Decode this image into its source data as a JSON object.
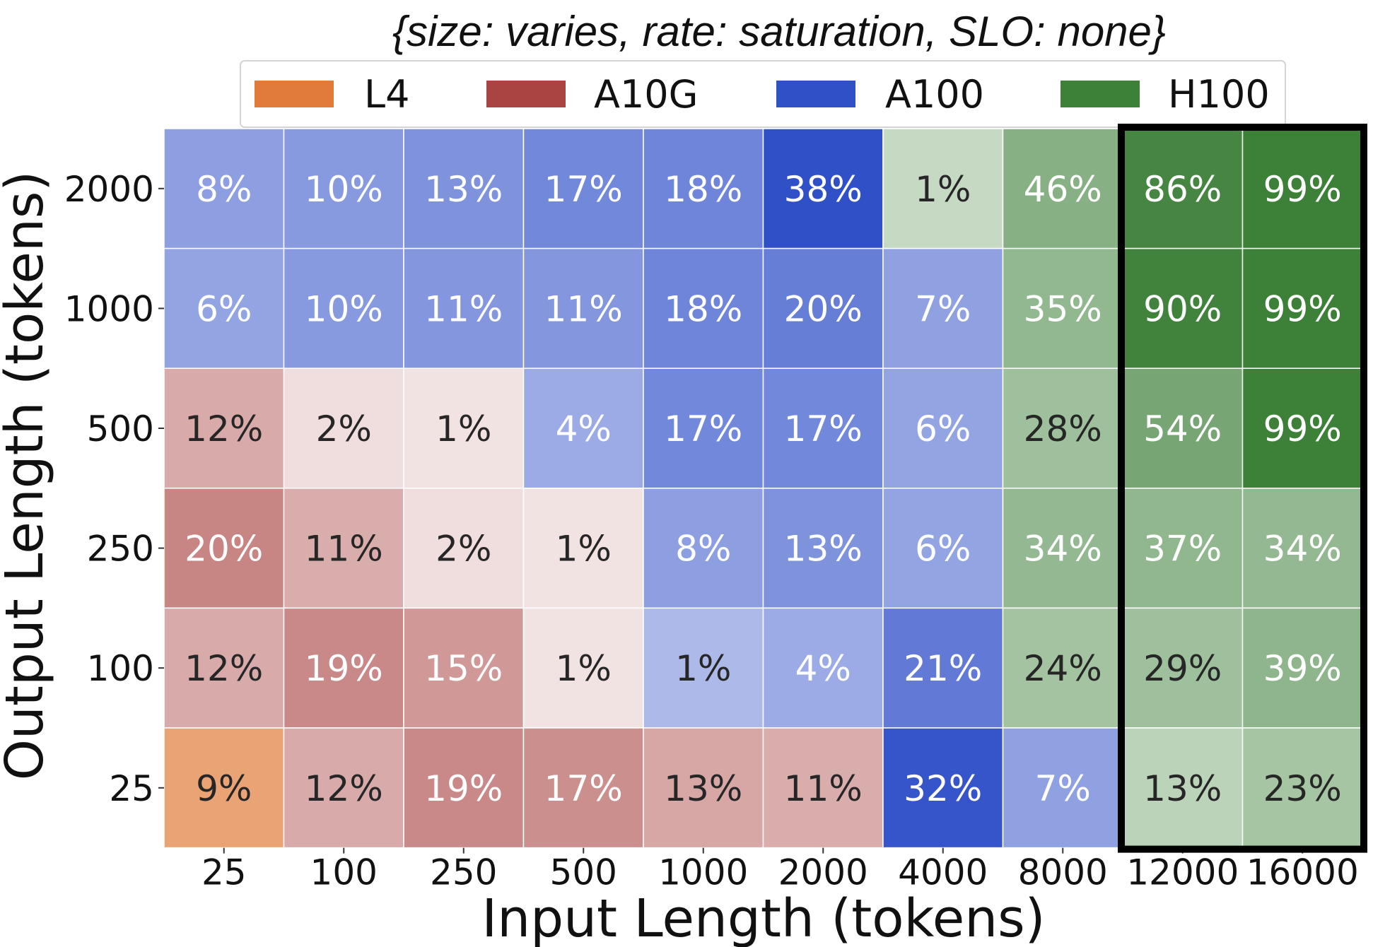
{
  "chart_data": {
    "type": "heatmap",
    "title": "{size: varies, rate: saturation, SLO: none}",
    "xlabel": "Input Length (tokens)",
    "ylabel": "Output Length (tokens)",
    "x_categories": [
      "25",
      "100",
      "250",
      "500",
      "1000",
      "2000",
      "4000",
      "8000",
      "12000",
      "16000"
    ],
    "y_categories": [
      "2000",
      "1000",
      "500",
      "250",
      "100",
      "25"
    ],
    "legend": [
      {
        "label": "L4",
        "color": "#e07b39"
      },
      {
        "label": "A10G",
        "color": "#a94442"
      },
      {
        "label": "A100",
        "color": "#3050c8"
      },
      {
        "label": "H100",
        "color": "#3d8038"
      }
    ],
    "cells": [
      [
        {
          "value": "8%",
          "gpu": "A100",
          "intensity": 0.55
        },
        {
          "value": "10%",
          "gpu": "A100",
          "intensity": 0.58
        },
        {
          "value": "13%",
          "gpu": "A100",
          "intensity": 0.62
        },
        {
          "value": "17%",
          "gpu": "A100",
          "intensity": 0.68
        },
        {
          "value": "18%",
          "gpu": "A100",
          "intensity": 0.7
        },
        {
          "value": "38%",
          "gpu": "A100",
          "intensity": 1.0
        },
        {
          "value": "1%",
          "gpu": "H100",
          "intensity": 0.3
        },
        {
          "value": "46%",
          "gpu": "H100",
          "intensity": 0.62
        },
        {
          "value": "86%",
          "gpu": "H100",
          "intensity": 0.95
        },
        {
          "value": "99%",
          "gpu": "H100",
          "intensity": 1.0
        }
      ],
      [
        {
          "value": "6%",
          "gpu": "A100",
          "intensity": 0.52
        },
        {
          "value": "10%",
          "gpu": "A100",
          "intensity": 0.58
        },
        {
          "value": "11%",
          "gpu": "A100",
          "intensity": 0.6
        },
        {
          "value": "11%",
          "gpu": "A100",
          "intensity": 0.6
        },
        {
          "value": "18%",
          "gpu": "A100",
          "intensity": 0.7
        },
        {
          "value": "20%",
          "gpu": "A100",
          "intensity": 0.74
        },
        {
          "value": "7%",
          "gpu": "A100",
          "intensity": 0.54
        },
        {
          "value": "35%",
          "gpu": "H100",
          "intensity": 0.56
        },
        {
          "value": "90%",
          "gpu": "H100",
          "intensity": 0.98
        },
        {
          "value": "99%",
          "gpu": "H100",
          "intensity": 1.0
        }
      ],
      [
        {
          "value": "12%",
          "gpu": "A10G",
          "intensity": 0.45
        },
        {
          "value": "2%",
          "gpu": "A10G",
          "intensity": 0.18
        },
        {
          "value": "1%",
          "gpu": "A10G",
          "intensity": 0.15
        },
        {
          "value": "4%",
          "gpu": "A100",
          "intensity": 0.48
        },
        {
          "value": "17%",
          "gpu": "A100",
          "intensity": 0.68
        },
        {
          "value": "17%",
          "gpu": "A100",
          "intensity": 0.68
        },
        {
          "value": "6%",
          "gpu": "A100",
          "intensity": 0.52
        },
        {
          "value": "28%",
          "gpu": "H100",
          "intensity": 0.5
        },
        {
          "value": "54%",
          "gpu": "H100",
          "intensity": 0.7
        },
        {
          "value": "99%",
          "gpu": "H100",
          "intensity": 1.0
        }
      ],
      [
        {
          "value": "20%",
          "gpu": "A10G",
          "intensity": 0.65
        },
        {
          "value": "11%",
          "gpu": "A10G",
          "intensity": 0.44
        },
        {
          "value": "2%",
          "gpu": "A10G",
          "intensity": 0.18
        },
        {
          "value": "1%",
          "gpu": "A10G",
          "intensity": 0.15
        },
        {
          "value": "8%",
          "gpu": "A100",
          "intensity": 0.55
        },
        {
          "value": "13%",
          "gpu": "A100",
          "intensity": 0.62
        },
        {
          "value": "6%",
          "gpu": "A100",
          "intensity": 0.52
        },
        {
          "value": "34%",
          "gpu": "H100",
          "intensity": 0.55
        },
        {
          "value": "37%",
          "gpu": "H100",
          "intensity": 0.57
        },
        {
          "value": "34%",
          "gpu": "H100",
          "intensity": 0.55
        }
      ],
      [
        {
          "value": "12%",
          "gpu": "A10G",
          "intensity": 0.45
        },
        {
          "value": "19%",
          "gpu": "A10G",
          "intensity": 0.63
        },
        {
          "value": "15%",
          "gpu": "A10G",
          "intensity": 0.55
        },
        {
          "value": "1%",
          "gpu": "A10G",
          "intensity": 0.15
        },
        {
          "value": "1%",
          "gpu": "A100",
          "intensity": 0.4
        },
        {
          "value": "4%",
          "gpu": "A100",
          "intensity": 0.48
        },
        {
          "value": "21%",
          "gpu": "A100",
          "intensity": 0.76
        },
        {
          "value": "24%",
          "gpu": "H100",
          "intensity": 0.47
        },
        {
          "value": "29%",
          "gpu": "H100",
          "intensity": 0.5
        },
        {
          "value": "39%",
          "gpu": "H100",
          "intensity": 0.58
        }
      ],
      [
        {
          "value": "9%",
          "gpu": "L4",
          "intensity": 0.7
        },
        {
          "value": "12%",
          "gpu": "A10G",
          "intensity": 0.45
        },
        {
          "value": "19%",
          "gpu": "A10G",
          "intensity": 0.63
        },
        {
          "value": "17%",
          "gpu": "A10G",
          "intensity": 0.6
        },
        {
          "value": "13%",
          "gpu": "A10G",
          "intensity": 0.47
        },
        {
          "value": "11%",
          "gpu": "A10G",
          "intensity": 0.44
        },
        {
          "value": "32%",
          "gpu": "A100",
          "intensity": 0.97
        },
        {
          "value": "7%",
          "gpu": "A100",
          "intensity": 0.54
        },
        {
          "value": "13%",
          "gpu": "H100",
          "intensity": 0.35
        },
        {
          "value": "23%",
          "gpu": "H100",
          "intensity": 0.46
        }
      ]
    ],
    "cell_text_colors": [
      [
        "#ffffff",
        "#ffffff",
        "#ffffff",
        "#ffffff",
        "#ffffff",
        "#ffffff",
        "#262626",
        "#ffffff",
        "#ffffff",
        "#ffffff"
      ],
      [
        "#ffffff",
        "#ffffff",
        "#ffffff",
        "#ffffff",
        "#ffffff",
        "#ffffff",
        "#ffffff",
        "#ffffff",
        "#ffffff",
        "#ffffff"
      ],
      [
        "#262626",
        "#262626",
        "#262626",
        "#ffffff",
        "#ffffff",
        "#ffffff",
        "#ffffff",
        "#262626",
        "#ffffff",
        "#ffffff"
      ],
      [
        "#ffffff",
        "#262626",
        "#262626",
        "#262626",
        "#ffffff",
        "#ffffff",
        "#ffffff",
        "#ffffff",
        "#ffffff",
        "#ffffff"
      ],
      [
        "#262626",
        "#ffffff",
        "#ffffff",
        "#262626",
        "#262626",
        "#ffffff",
        "#ffffff",
        "#262626",
        "#262626",
        "#ffffff"
      ],
      [
        "#262626",
        "#262626",
        "#ffffff",
        "#ffffff",
        "#262626",
        "#262626",
        "#ffffff",
        "#ffffff",
        "#262626",
        "#262626"
      ]
    ],
    "highlight": {
      "columns": [
        "12000",
        "16000"
      ],
      "outline_color": "#000000"
    }
  }
}
